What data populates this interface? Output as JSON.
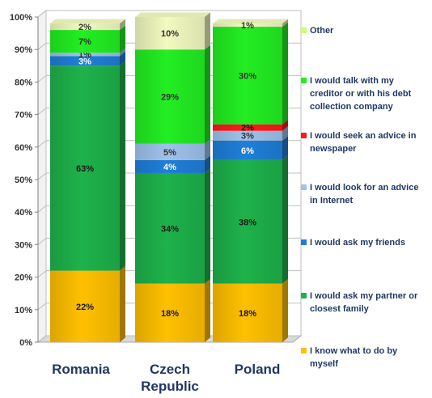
{
  "chart_data": {
    "type": "bar",
    "stacked": true,
    "categories": [
      "Romania",
      "Czech Republic",
      "Poland"
    ],
    "category_lines": [
      [
        "Romania"
      ],
      [
        "Czech",
        "Republic"
      ],
      [
        "Poland"
      ]
    ],
    "ylim": [
      0,
      100
    ],
    "y_ticks": [
      "0%",
      "10%",
      "20%",
      "30%",
      "40%",
      "50%",
      "60%",
      "70%",
      "80%",
      "90%",
      "100%"
    ],
    "legend_position": "right",
    "series": [
      {
        "name": "I know what to do by myself",
        "color": "#FFC000",
        "values": [
          22,
          18,
          18
        ],
        "labels": [
          "22%",
          "18%",
          "18%"
        ]
      },
      {
        "name": "I would ask my partner or closest family",
        "color": "#1EB24B",
        "values": [
          63,
          34,
          38
        ],
        "labels": [
          "63%",
          "34%",
          "38%"
        ]
      },
      {
        "name": "I would ask my friends",
        "color": "#1F7FD8",
        "values": [
          3,
          4,
          6
        ],
        "labels": [
          "3%",
          "4%",
          "6%"
        ]
      },
      {
        "name": "I would look for an advice in Internet",
        "color": "#9EC2EC",
        "values": [
          1,
          5,
          3
        ],
        "labels": [
          "1%",
          "5%",
          "3%"
        ]
      },
      {
        "name": "I would seek an advice in newspaper",
        "color": "#FF1A1A",
        "values": [
          0,
          0,
          2
        ],
        "labels": [
          "",
          "",
          "2%"
        ]
      },
      {
        "name": "I would talk with my creditor or with his debt collection company",
        "color": "#22EE22",
        "values": [
          7,
          29,
          30
        ],
        "labels": [
          "7%",
          "29%",
          "30%"
        ]
      },
      {
        "name": "Other",
        "color": "#F2FAC0",
        "values": [
          2,
          10,
          1
        ],
        "labels": [
          "2%",
          "10%",
          "1%"
        ]
      }
    ],
    "legend": [
      {
        "lines": [
          "Other"
        ],
        "color": "#C9FF6A"
      },
      {
        "lines": [
          "I would talk with my",
          "creditor or with his debt",
          "collection company"
        ],
        "color": "#22EE22"
      },
      {
        "lines": [
          "I would seek an advice in",
          "newspaper"
        ],
        "color": "#FF1A1A"
      },
      {
        "lines": [
          "I would look for an advice",
          "in Internet"
        ],
        "color": "#9EC2EC"
      },
      {
        "lines": [
          "I would ask my friends"
        ],
        "color": "#1F7FD8"
      },
      {
        "lines": [
          "I would ask my partner or",
          "closest family"
        ],
        "color": "#1EB24B"
      },
      {
        "lines": [
          "I know what to do by",
          "myself"
        ],
        "color": "#FFC000"
      }
    ]
  }
}
